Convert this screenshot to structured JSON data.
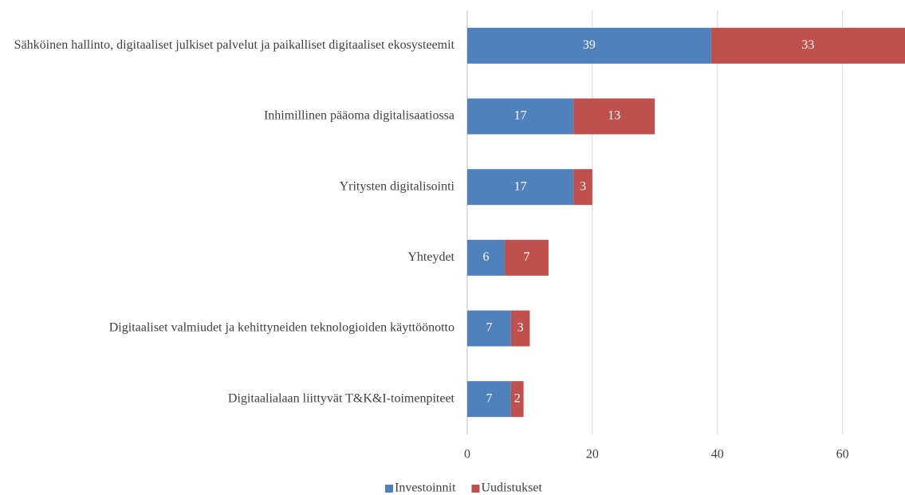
{
  "chart_data": {
    "type": "stacked_barh",
    "categories": [
      "Sähköinen hallinto, digitaaliset julkiset palvelut ja paikalliset digitaaliset ekosysteemit",
      "Inhimillinen pääoma digitalisaatiossa",
      "Yritysten digitalisointi",
      "Yhteydet",
      "Digitaaliset valmiudet ja kehittyneiden teknologioiden käyttöönotto",
      "Digitaalialaan liittyvät T&K&I-toimenpiteet"
    ],
    "series": [
      {
        "name": "Investoinnit",
        "color": "#4f81bd",
        "values": [
          39,
          17,
          17,
          6,
          7,
          7
        ]
      },
      {
        "name": "Uudistukset",
        "color": "#c0504d",
        "values": [
          33,
          13,
          3,
          7,
          3,
          2
        ]
      }
    ],
    "xlim": [
      0,
      70
    ],
    "xticks": [
      0,
      20,
      40,
      60
    ],
    "grid": true,
    "legend": "bottom"
  }
}
